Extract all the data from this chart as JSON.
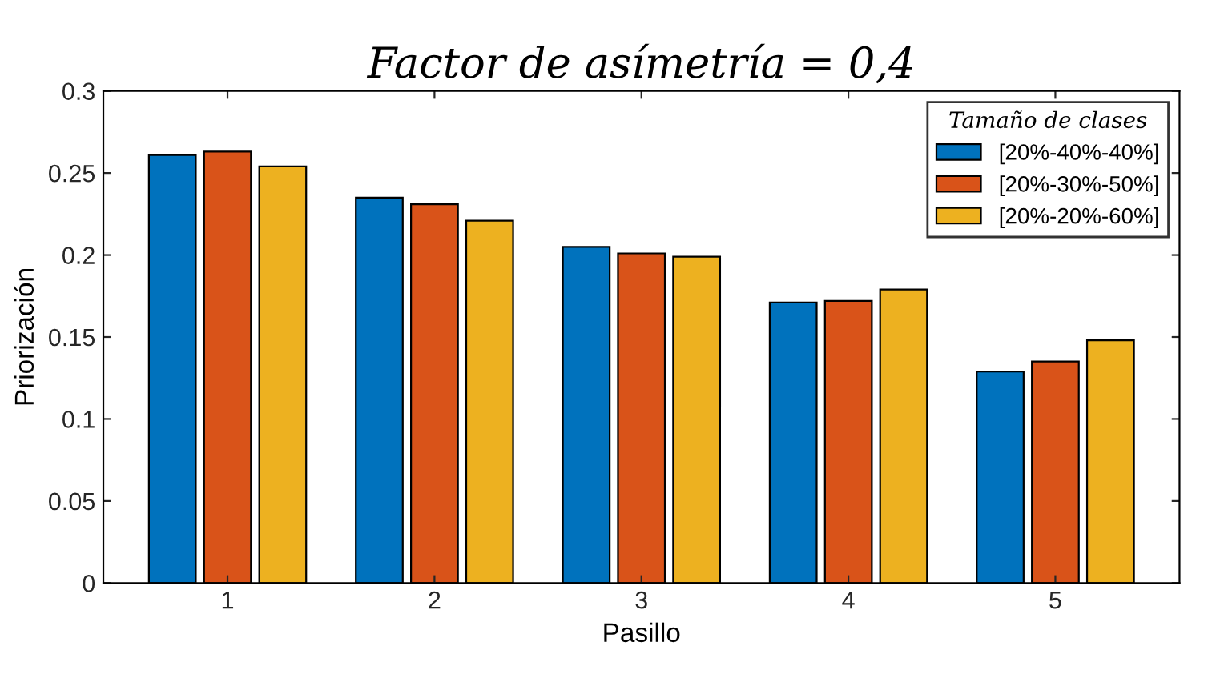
{
  "chart_data": {
    "type": "bar",
    "title": "Factor de asímetría = 0,4",
    "xlabel": "Pasillo",
    "ylabel": "Priorización",
    "legend_title": "Tamaño de clases",
    "categories": [
      "1",
      "2",
      "3",
      "4",
      "5"
    ],
    "series": [
      {
        "name": "[20%-40%-40%]",
        "color": "#0072bd",
        "values": [
          0.261,
          0.235,
          0.205,
          0.171,
          0.129
        ]
      },
      {
        "name": "[20%-30%-50%]",
        "color": "#d95319",
        "values": [
          0.263,
          0.231,
          0.201,
          0.172,
          0.135
        ]
      },
      {
        "name": "[20%-20%-60%]",
        "color": "#edb120",
        "values": [
          0.254,
          0.221,
          0.199,
          0.179,
          0.148
        ]
      }
    ],
    "ylim": [
      0,
      0.3
    ],
    "yticks": [
      0,
      0.05,
      0.1,
      0.15,
      0.2,
      0.25,
      0.3
    ],
    "grid": false,
    "legend": "top right"
  }
}
